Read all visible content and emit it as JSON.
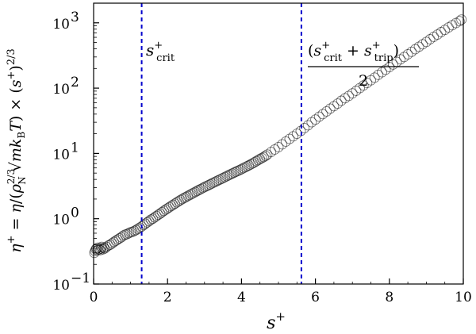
{
  "chart_data": {
    "type": "scatter",
    "title": "",
    "xlabel": "s⁺",
    "ylabel": "η⁺ = η/(ρN^{2/3} √(m kB T)) × (s⁺)^{2/3}",
    "x_range": [
      0,
      10
    ],
    "y_range": [
      0.1,
      2000
    ],
    "y_scale": "log",
    "grid": false,
    "x_ticks": [
      0,
      2,
      4,
      6,
      8,
      10
    ],
    "x_tick_labels": [
      "0",
      "2",
      "4",
      "6",
      "8",
      "10"
    ],
    "y_ticks": [
      0.1,
      1,
      10,
      100,
      1000
    ],
    "y_tick_labels": [
      "10",
      "10",
      "10",
      "10",
      "10"
    ],
    "y_tick_exponents": [
      "−1",
      "0",
      "1",
      "2",
      "3"
    ],
    "marker": "open-circle",
    "marker_color": "#000000",
    "series": [
      {
        "x": [
          0.02,
          0.04,
          0.06,
          0.08,
          0.1,
          0.12,
          0.15,
          0.18,
          0.2,
          0.22,
          0.25,
          0.28,
          0.3,
          0.35,
          0.4,
          0.45,
          0.5,
          0.55,
          0.6,
          0.65,
          0.7,
          0.75,
          0.8,
          0.85,
          0.9,
          0.95,
          1.0,
          1.05,
          1.1,
          1.15,
          1.2,
          1.25,
          1.3,
          1.35,
          1.4,
          1.45,
          1.5,
          1.55,
          1.6,
          1.65,
          1.7,
          1.75,
          1.8,
          1.85,
          1.9,
          1.95,
          2.0,
          2.05,
          2.1,
          2.15,
          2.2,
          2.25,
          2.3,
          2.35,
          2.4,
          2.45,
          2.5,
          2.55,
          2.6,
          2.65,
          2.7,
          2.75,
          2.8,
          2.85,
          2.9,
          2.95,
          3.0,
          3.05,
          3.1,
          3.15,
          3.2,
          3.25,
          3.3,
          3.35,
          3.4,
          3.45,
          3.5,
          3.55,
          3.6,
          3.65,
          3.7,
          3.75,
          3.8,
          3.85,
          3.9,
          3.95,
          4.0,
          4.05,
          4.1,
          4.15,
          4.2,
          4.25,
          4.3,
          4.35,
          4.4,
          4.45,
          4.5,
          4.55,
          4.6,
          4.65,
          4.7,
          4.8,
          4.9,
          5.0,
          5.1,
          5.2,
          5.3,
          5.4,
          5.5,
          5.6,
          5.7,
          5.8,
          5.9,
          6.0,
          6.1,
          6.2,
          6.3,
          6.4,
          6.5,
          6.6,
          6.7,
          6.8,
          6.9,
          7.0,
          7.1,
          7.2,
          7.3,
          7.4,
          7.5,
          7.6,
          7.7,
          7.8,
          7.9,
          8.0,
          8.1,
          8.2,
          8.3,
          8.4,
          8.5,
          8.6,
          8.7,
          8.8,
          8.9,
          9.0,
          9.1,
          9.2,
          9.3,
          9.4,
          9.5,
          9.6,
          9.7,
          9.8,
          9.9,
          9.95
        ],
        "y": [
          0.3,
          0.32,
          0.34,
          0.35,
          0.33,
          0.36,
          0.34,
          0.33,
          0.35,
          0.37,
          0.34,
          0.36,
          0.35,
          0.37,
          0.39,
          0.4,
          0.42,
          0.44,
          0.46,
          0.48,
          0.5,
          0.52,
          0.55,
          0.57,
          0.58,
          0.6,
          0.62,
          0.63,
          0.65,
          0.67,
          0.7,
          0.73,
          0.76,
          0.8,
          0.84,
          0.88,
          0.92,
          0.97,
          1.0,
          1.05,
          1.1,
          1.15,
          1.2,
          1.26,
          1.32,
          1.38,
          1.44,
          1.5,
          1.57,
          1.63,
          1.7,
          1.78,
          1.85,
          1.93,
          2.0,
          2.08,
          2.15,
          2.23,
          2.31,
          2.4,
          2.48,
          2.57,
          2.66,
          2.75,
          2.85,
          2.95,
          3.05,
          3.15,
          3.25,
          3.36,
          3.47,
          3.58,
          3.7,
          3.82,
          3.94,
          4.06,
          4.2,
          4.34,
          4.48,
          4.62,
          4.77,
          4.92,
          5.08,
          5.24,
          5.4,
          5.57,
          5.75,
          5.95,
          6.15,
          6.35,
          6.55,
          6.8,
          7.05,
          7.3,
          7.6,
          7.9,
          8.2,
          8.5,
          8.8,
          9.2,
          9.6,
          10.5,
          11.5,
          12.5,
          13.8,
          15.2,
          16.7,
          18.3,
          20.0,
          22.0,
          24.5,
          27.0,
          30.0,
          33.0,
          36.5,
          40.0,
          44.0,
          48.5,
          53.0,
          58.0,
          64.0,
          70.0,
          76.0,
          83.0,
          91.0,
          100,
          110,
          120,
          132,
          145,
          160,
          175,
          192,
          210,
          230,
          252,
          276,
          300,
          330,
          360,
          395,
          430,
          470,
          510,
          560,
          610,
          660,
          720,
          780,
          850,
          920,
          990,
          1060,
          1120
        ]
      }
    ],
    "reference_lines": [
      {
        "name": "s_crit",
        "x": 1.3,
        "color": "#0000cc",
        "style": "dashed"
      },
      {
        "name": "s_mid",
        "x": 5.62,
        "color": "#0000cc",
        "style": "dashed"
      }
    ],
    "annotations": {
      "crit_label": "s⁺crit",
      "mid_numerator": "(s⁺crit + s⁺trip)",
      "mid_denominator": "2"
    }
  }
}
